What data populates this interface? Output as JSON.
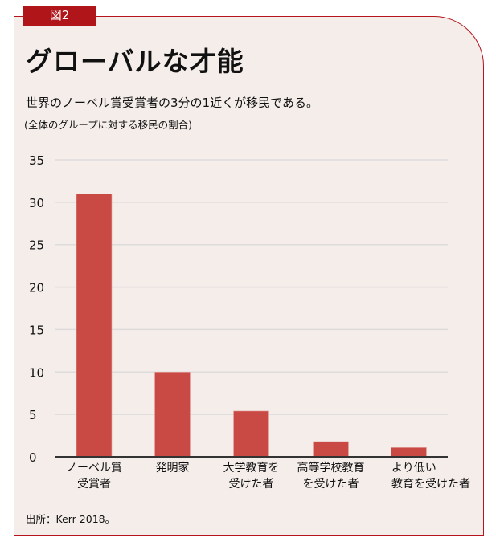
{
  "figure_tag": "図2",
  "title": "グローバルな才能",
  "subtitle": "世界のノーベル賞受賞者の3分の1近くが移民である。",
  "note": "(全体のグループに対する移民の割合)",
  "source": "出所：Kerr 2018。",
  "colors": {
    "bar": "#c94a45",
    "accent": "#b0151a",
    "background": "#f4edea",
    "grid": "#dddbdb"
  },
  "chart_data": {
    "type": "bar",
    "title": "グローバルな才能",
    "categories": [
      "ノーベル賞\n受賞者",
      "発明家",
      "大学教育を\n受けた者",
      "高等学校教育\nを受けた者",
      "より低い\n教育を受けた者"
    ],
    "values": [
      31,
      10,
      5.4,
      1.8,
      1.1
    ],
    "xlabel": "",
    "ylabel": "",
    "ylim": [
      0,
      35
    ],
    "yticks": [
      "0",
      "5",
      "10",
      "15",
      "20",
      "25",
      "30",
      "35"
    ],
    "grid": true,
    "legend": "none"
  }
}
